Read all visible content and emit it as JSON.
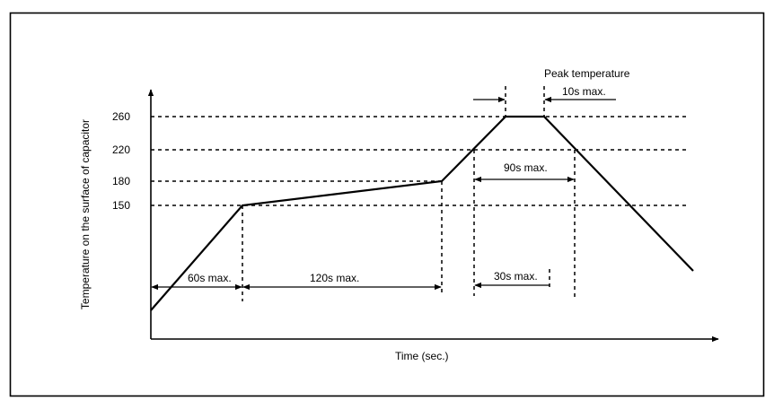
{
  "diagram": {
    "y_axis_label": "Temperature on the surface of capacitor",
    "x_axis_label": "Time (sec.)",
    "temperature_ticks": [
      "260",
      "220",
      "180",
      "150"
    ],
    "peak_label": "Peak temperature",
    "interval_labels": {
      "peak_hold": "10s max.",
      "above_220": "90s max.",
      "preheat_ramp": "60s max.",
      "soak": "120s max.",
      "ramp_to_peak": "30s max."
    }
  }
}
